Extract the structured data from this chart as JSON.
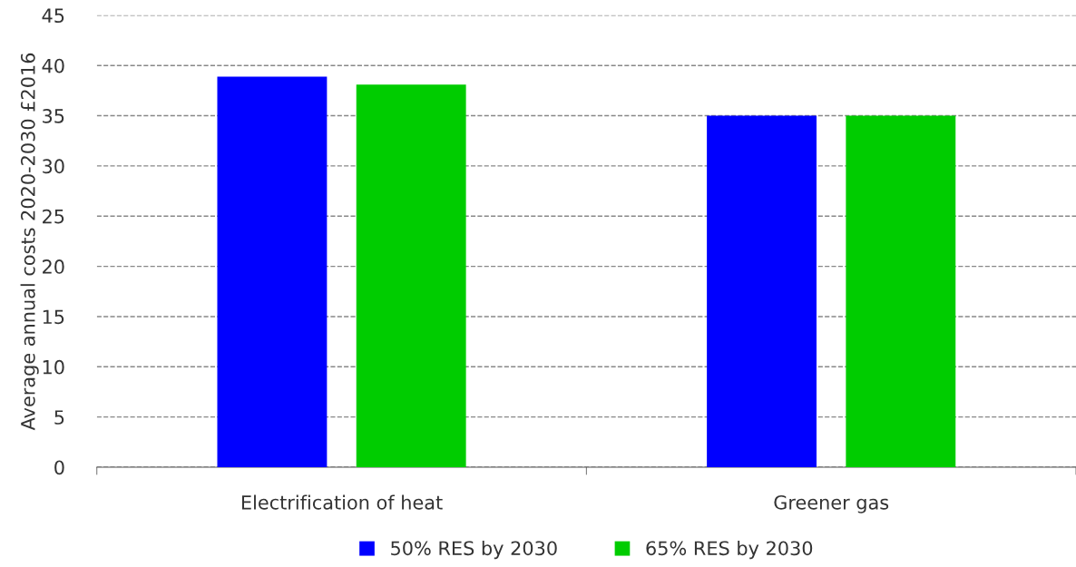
{
  "chart_data": {
    "type": "bar",
    "ylabel": "Average annual costs 2020-2030 £2016",
    "categories": [
      "Electrification of heat",
      "Greener gas"
    ],
    "series": [
      {
        "name": "50% RES by 2030",
        "color": "#0000ff",
        "values": [
          38.9,
          35
        ]
      },
      {
        "name": "65% RES by 2030",
        "color": "#00cc00",
        "values": [
          38.1,
          35
        ]
      }
    ],
    "ylim": [
      0,
      45
    ],
    "yticks": [
      0,
      5,
      10,
      15,
      20,
      25,
      30,
      35,
      40,
      45
    ],
    "grid": "y",
    "legend": "bottom"
  }
}
